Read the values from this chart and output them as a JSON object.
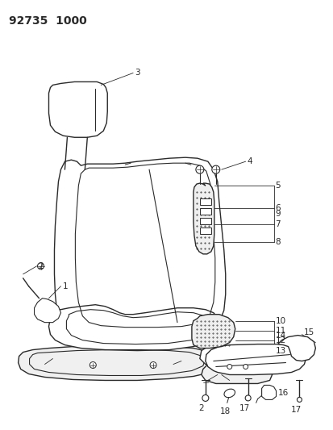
{
  "title": "92735  1000",
  "bg_color": "#ffffff",
  "line_color": "#2a2a2a",
  "fig_width": 4.14,
  "fig_height": 5.33,
  "dpi": 100
}
